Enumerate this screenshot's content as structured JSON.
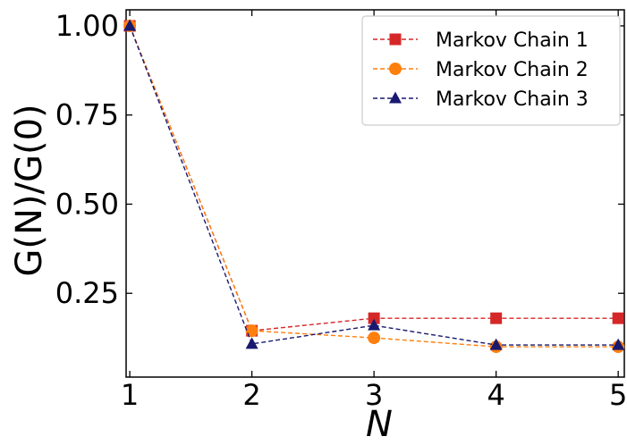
{
  "chart_data": {
    "type": "line",
    "xlabel": "N",
    "ylabel": "G(N)/G(0)",
    "x": [
      1,
      2,
      3,
      4,
      5
    ],
    "xlim": [
      0.97,
      5.05
    ],
    "ylim": [
      0.015,
      1.045
    ],
    "xticks": [
      "1",
      "2",
      "3",
      "4",
      "5"
    ],
    "yticks": [
      {
        "value": 1.0,
        "label": "1.00"
      },
      {
        "value": 0.75,
        "label": "0.75"
      },
      {
        "value": 0.5,
        "label": "0.50"
      },
      {
        "value": 0.25,
        "label": "0.25"
      }
    ],
    "grid": false,
    "legend_position": "top-right",
    "series": [
      {
        "name": "Markov Chain 1",
        "color": "#d62728",
        "marker": "square",
        "line": "dashed",
        "values": [
          1.0,
          0.145,
          0.18,
          0.18,
          0.18
        ]
      },
      {
        "name": "Markov Chain 2",
        "color": "#ff7f0e",
        "marker": "circle",
        "line": "dashed",
        "values": [
          1.0,
          0.145,
          0.125,
          0.1,
          0.1
        ]
      },
      {
        "name": "Markov Chain 3",
        "color": "#191970",
        "marker": "triangle",
        "line": "dashed",
        "values": [
          1.0,
          0.108,
          0.16,
          0.105,
          0.105
        ]
      }
    ]
  }
}
